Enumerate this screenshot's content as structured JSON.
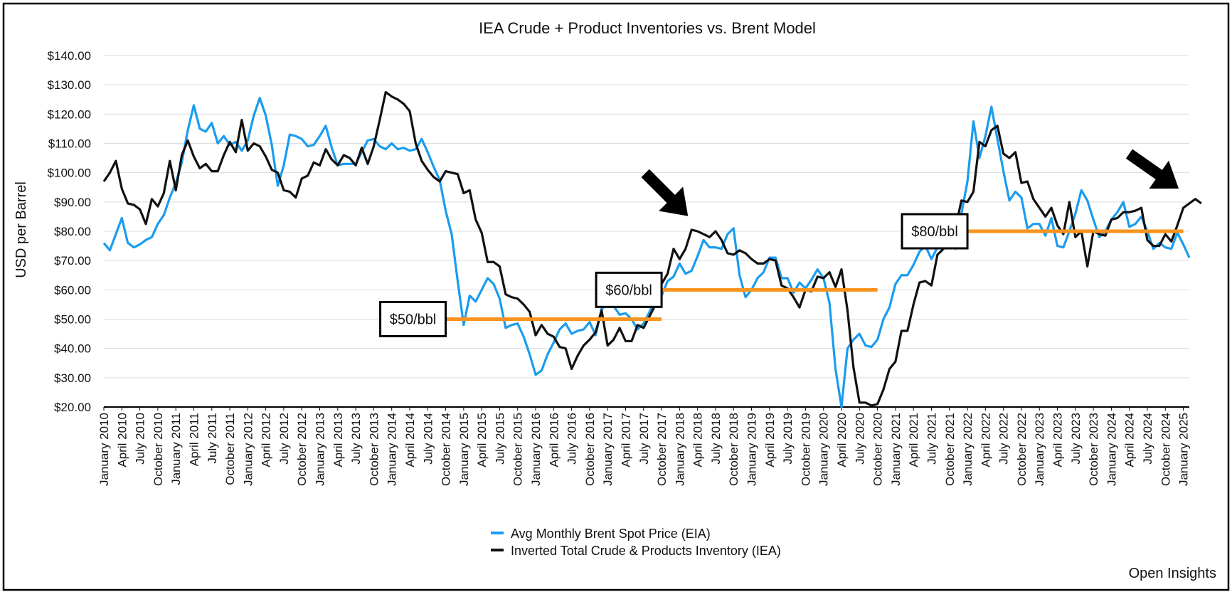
{
  "chart_data": {
    "type": "line",
    "title": "IEA Crude + Product Inventories vs. Brent Model",
    "ylabel": "USD per Barrel",
    "xlabel": "",
    "ylim": [
      20,
      140
    ],
    "y_ticks": [
      "$20.00",
      "$30.00",
      "$40.00",
      "$50.00",
      "$60.00",
      "$70.00",
      "$80.00",
      "$90.00",
      "$100.00",
      "$110.00",
      "$120.00",
      "$130.00",
      "$140.00"
    ],
    "x_tick_labels": [
      "January 2010",
      "April 2010",
      "July 2010",
      "October 2010",
      "January 2011",
      "April 2011",
      "July 2011",
      "October 2011",
      "January 2012",
      "April 2012",
      "July 2012",
      "October 2012",
      "January 2013",
      "April 2013",
      "July 2013",
      "October 2013",
      "January 2014",
      "April 2014",
      "July 2014",
      "October 2014",
      "January 2015",
      "April 2015",
      "July 2015",
      "October 2015",
      "January 2016",
      "April 2016",
      "July 2016",
      "October 2016",
      "January 2017",
      "April 2017",
      "July 2017",
      "October 2017",
      "January 2018",
      "April 2018",
      "July 2018",
      "October 2018",
      "January 2019",
      "April 2019",
      "July 2019",
      "October 2019",
      "January 2020",
      "April 2020",
      "July 2020",
      "October 2020",
      "January 2021",
      "April 2021",
      "July 2021",
      "October 2021",
      "January 2022",
      "April 2022",
      "July 2022",
      "October 2022",
      "January 2023",
      "April 2023",
      "July 2023",
      "October 2023",
      "January 2024",
      "April 2024",
      "July 2024",
      "October 2024",
      "January 2025"
    ],
    "x_start": "January 2010",
    "grid": true,
    "legend_position": "bottom-center",
    "series": [
      {
        "name": "Avg Monthly Brent Spot Price (EIA)",
        "color": "#1a9cf0",
        "values": [
          76,
          73.5,
          79,
          84.5,
          76,
          74.5,
          75.5,
          77,
          78,
          82.5,
          85.5,
          91.5,
          96.5,
          103.5,
          114.5,
          123,
          115,
          114,
          117,
          110,
          112.5,
          109.5,
          110.5,
          107.5,
          111,
          119.5,
          125.5,
          119.5,
          109.5,
          95.5,
          102.5,
          113,
          112.5,
          111.5,
          109,
          109.5,
          112.5,
          116,
          108.5,
          102.5,
          103,
          103,
          103,
          107,
          111,
          111.5,
          109,
          108,
          110,
          108,
          108.5,
          107.5,
          108,
          111.5,
          107,
          102,
          97.5,
          87,
          79,
          63,
          48,
          58,
          56,
          60,
          64,
          62,
          57,
          47,
          48,
          48.5,
          44,
          38,
          31,
          32.5,
          38,
          42,
          46.5,
          48.5,
          45,
          46,
          46.5,
          49,
          44.5,
          53.5,
          55,
          54.5,
          51.5,
          52,
          50,
          46.5,
          48.5,
          52.5,
          57,
          58,
          63,
          64.5,
          69,
          65.5,
          66.5,
          71.5,
          77,
          74.5,
          74.5,
          74,
          79,
          81,
          65,
          57.5,
          60,
          64,
          66,
          71,
          71,
          64,
          64,
          59,
          62.5,
          60.5,
          63.5,
          67,
          64,
          55.5,
          33,
          20,
          40,
          43,
          45,
          41,
          40.5,
          43,
          50,
          54,
          62,
          65,
          65,
          68.5,
          73,
          75,
          70.5,
          74.5,
          83.5,
          81,
          74,
          86,
          97,
          117.5,
          105,
          112.5,
          122.5,
          111.5,
          100.5,
          90.5,
          93.5,
          91.5,
          81,
          82.5,
          82.5,
          78.5,
          84.5,
          75,
          74.5,
          80,
          86,
          94,
          90.5,
          84,
          78,
          80,
          84,
          86.5,
          90,
          81.5,
          82.5,
          85,
          80,
          74,
          76,
          74.5,
          74,
          79.5,
          75.5,
          71
        ]
      },
      {
        "name": "Inverted Total Crude & Products Inventory (IEA)",
        "color": "#111111",
        "values": [
          97,
          100,
          104,
          94.5,
          89.5,
          89,
          87.5,
          82.5,
          91,
          88.5,
          93,
          104,
          94,
          106,
          111,
          105.5,
          101.5,
          103,
          100.5,
          100.5,
          106,
          110.5,
          107,
          118,
          107.5,
          110,
          109,
          105.5,
          101,
          100,
          94,
          93.5,
          91.5,
          98,
          99,
          103.5,
          102.5,
          108,
          104.5,
          102.5,
          106,
          105,
          102.5,
          108.5,
          103,
          109,
          118,
          127.5,
          126,
          125,
          123.5,
          121,
          110,
          104,
          101,
          98.5,
          97,
          100.5,
          100,
          99.5,
          93,
          94,
          84,
          79.5,
          69.5,
          69.5,
          68,
          58.5,
          57.5,
          57,
          55,
          52.5,
          44.5,
          48,
          45,
          44,
          40.5,
          40,
          33,
          37.5,
          41,
          43,
          45.5,
          53,
          41,
          43,
          47,
          42.5,
          42.5,
          48,
          47,
          51,
          55,
          62,
          65.5,
          74,
          70.5,
          74,
          80.5,
          80,
          79,
          78,
          80,
          77,
          72.5,
          72,
          73.5,
          72.5,
          70.5,
          69,
          69,
          70.5,
          70,
          61.5,
          60.5,
          57.5,
          54,
          60,
          59.5,
          64.5,
          64,
          66,
          61,
          67,
          53,
          33.5,
          21.5,
          21.5,
          20.5,
          21,
          26,
          33,
          35.5,
          46,
          46,
          55,
          62.5,
          63,
          61.5,
          72,
          74,
          79,
          81,
          90.5,
          90,
          93.5,
          110.5,
          109,
          114.5,
          116,
          106.5,
          105,
          107,
          96.5,
          97,
          91,
          88,
          85,
          88,
          82,
          79,
          90,
          78,
          80,
          68,
          80,
          79,
          78.5,
          84,
          84.5,
          86.5,
          86.5,
          87,
          88,
          77,
          75,
          75,
          79,
          76.5,
          82,
          88,
          89.5,
          91,
          89.5
        ]
      }
    ],
    "annotations": [
      {
        "label": "$50/bbl",
        "value": 50,
        "from": "October 2014",
        "to": "October 2017"
      },
      {
        "label": "$60/bbl",
        "value": 60,
        "from": "October 2017",
        "to": "October 2020"
      },
      {
        "label": "$80/bbl",
        "value": 80,
        "from": "January 2022",
        "to": "January 2025"
      }
    ],
    "reference_line_color": "#f7931e",
    "arrows": [
      {
        "name": "arrow-2018",
        "points_to": "April 2018"
      },
      {
        "name": "arrow-2025",
        "points_to": "January 2025"
      }
    ],
    "source_note": "Open Insights"
  }
}
